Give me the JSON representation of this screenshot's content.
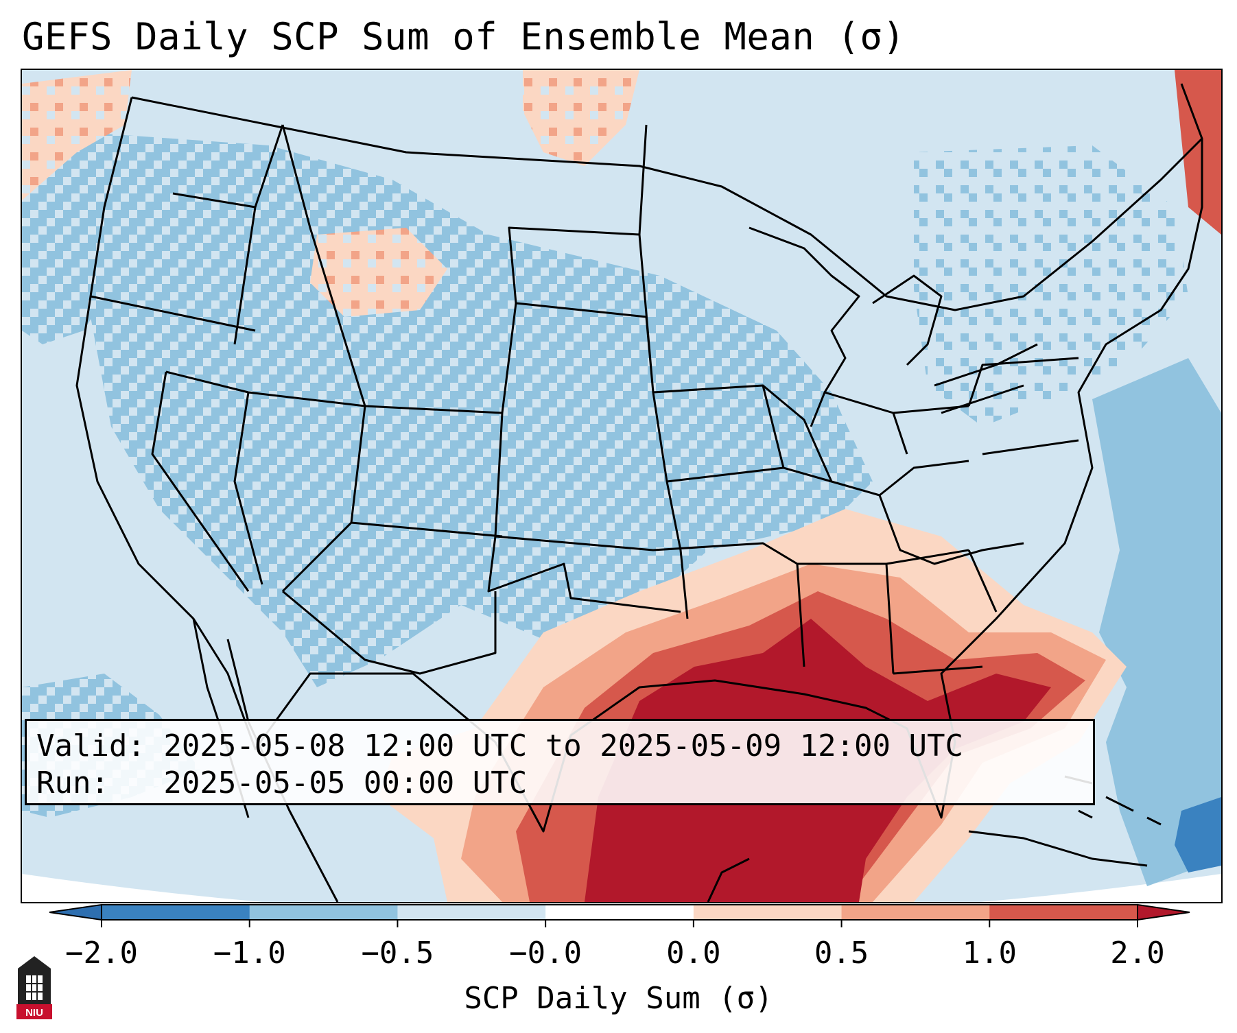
{
  "title": "GEFS Daily SCP Sum of Ensemble Mean (σ)",
  "info": {
    "valid_line": "Valid: 2025-05-08 12:00 UTC to 2025-05-09 12:00 UTC",
    "run_line": "Run:   2025-05-05 00:00 UTC"
  },
  "colorbar": {
    "label": "SCP Daily Sum (σ)",
    "ticks": [
      "−2.0",
      "−1.0",
      "−0.5",
      "−0.0",
      "0.0",
      "0.5",
      "1.0",
      "2.0"
    ],
    "colors": [
      "#3a82c0",
      "#91c3df",
      "#d2e5f1",
      "#fbd7c3",
      "#f2a488",
      "#d6584c"
    ],
    "extend_low_color": "#2e6fb0",
    "extend_high_color": "#b2182b"
  },
  "logo": {
    "text": "NIU"
  },
  "map": {
    "background_color": "#d2e5f1",
    "region": "CONUS"
  }
}
